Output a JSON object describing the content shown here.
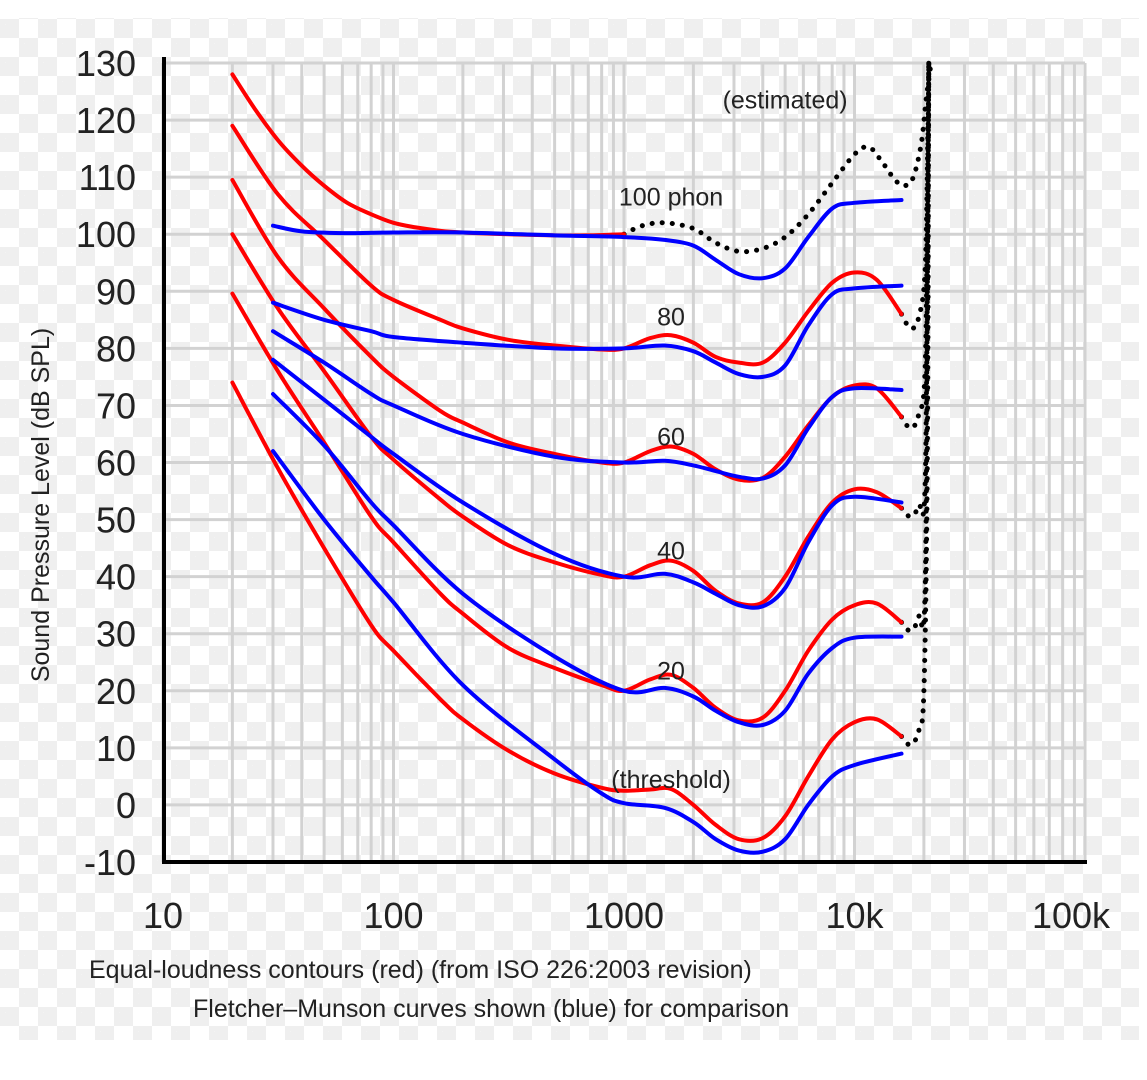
{
  "chart_data": {
    "type": "line",
    "title": "",
    "xlabel": "",
    "ylabel": "Sound Pressure Level (dB SPL)",
    "xscale": "log",
    "xlim": [
      10,
      100000
    ],
    "ylim": [
      -10,
      130
    ],
    "grid": true,
    "x_tick_labels": [
      {
        "value": 10,
        "label": "10"
      },
      {
        "value": 100,
        "label": "100"
      },
      {
        "value": 1000,
        "label": "1000"
      },
      {
        "value": 10000,
        "label": "10k"
      },
      {
        "value": 100000,
        "label": "100k"
      }
    ],
    "y_ticks": [
      130,
      120,
      110,
      100,
      90,
      80,
      70,
      60,
      50,
      40,
      30,
      20,
      10,
      0,
      -10
    ],
    "captions": [
      "Equal-loudness contours (red) (from ISO 226:2003 revision)",
      "Fletcher–Munson curves shown (blue) for comparison"
    ],
    "annotations": [
      {
        "text": "(estimated)",
        "x": 5000,
        "y": 122
      },
      {
        "text": "100 phon",
        "x": 1600,
        "y": 105
      },
      {
        "text": "80",
        "x": 1600,
        "y": 84
      },
      {
        "text": "60",
        "x": 1600,
        "y": 63
      },
      {
        "text": "40",
        "x": 1600,
        "y": 43
      },
      {
        "text": "20",
        "x": 1600,
        "y": 22
      },
      {
        "text": "(threshold)",
        "x": 1600,
        "y": 3
      }
    ],
    "colors": {
      "iso": "#ff0000",
      "fletcher_munson": "#0000ff",
      "estimated": "#000000",
      "grid": "#d2d2d2",
      "axis": "#000000"
    },
    "series": [
      {
        "name": "ISO 226:2003 100 phon",
        "group": "iso",
        "style": "solid",
        "x": [
          20,
          25,
          31.5,
          40,
          50,
          63,
          80,
          100,
          125,
          160,
          200,
          315,
          500,
          700,
          1000
        ],
        "y": [
          128,
          122,
          116.5,
          112,
          108.5,
          105.5,
          103.5,
          102,
          101.2,
          100.6,
          100.3,
          100,
          99.8,
          99.8,
          100
        ]
      },
      {
        "name": "ISO 226:2003 80 phon",
        "group": "iso",
        "style": "solid",
        "x": [
          20,
          31.5,
          50,
          80,
          100,
          160,
          200,
          315,
          500,
          800,
          1000,
          1300,
          1600,
          2000,
          2500,
          3150,
          4000,
          5000,
          6300,
          8000,
          10000,
          12500,
          16000
        ],
        "y": [
          119,
          107,
          99,
          91,
          88.5,
          85,
          83.5,
          81.5,
          80.5,
          79.8,
          80,
          81.8,
          82.3,
          81,
          78.5,
          77.5,
          77.5,
          81,
          86.5,
          91.5,
          93.3,
          92,
          86
        ]
      },
      {
        "name": "ISO 226:2003 60 phon",
        "group": "iso",
        "style": "solid",
        "x": [
          20,
          31.5,
          50,
          80,
          100,
          160,
          200,
          315,
          500,
          800,
          1000,
          1300,
          1600,
          2000,
          2500,
          3150,
          4000,
          5000,
          6300,
          8000,
          10000,
          12500,
          16000
        ],
        "y": [
          109.5,
          96,
          87,
          78.5,
          75,
          69,
          67,
          63.5,
          61.5,
          60,
          60,
          62,
          62.8,
          61.5,
          58.8,
          57,
          57.3,
          61,
          66.5,
          71.5,
          73.5,
          73,
          68
        ]
      },
      {
        "name": "ISO 226:2003 40 phon",
        "group": "iso",
        "style": "solid",
        "x": [
          20,
          31.5,
          50,
          80,
          100,
          160,
          200,
          315,
          500,
          800,
          1000,
          1300,
          1600,
          2000,
          2500,
          3150,
          4000,
          5000,
          6300,
          8000,
          10000,
          12500,
          16000
        ],
        "y": [
          100,
          87,
          76,
          64.5,
          60.5,
          53.5,
          50.5,
          45.5,
          42.5,
          40.3,
          40,
          42,
          42.8,
          41,
          37.5,
          35.3,
          35.5,
          40,
          47,
          53,
          55.3,
          54.8,
          52
        ]
      },
      {
        "name": "ISO 226:2003 20 phon",
        "group": "iso",
        "style": "solid",
        "x": [
          20,
          31.5,
          50,
          80,
          100,
          160,
          200,
          315,
          500,
          800,
          1000,
          1300,
          1600,
          2000,
          2500,
          3150,
          4000,
          5000,
          6300,
          8000,
          10000,
          12500,
          16000
        ],
        "y": [
          89.6,
          76,
          63.5,
          50.5,
          46,
          37,
          33.5,
          27.5,
          24,
          21,
          20,
          22,
          22.8,
          20.5,
          17,
          14.8,
          15.3,
          20,
          27,
          32.5,
          35,
          35.3,
          32
        ]
      },
      {
        "name": "ISO 226:2003 threshold",
        "group": "iso",
        "style": "solid",
        "x": [
          20,
          31.5,
          50,
          80,
          100,
          160,
          200,
          315,
          500,
          800,
          1000,
          1300,
          1600,
          2000,
          2500,
          3150,
          4000,
          5000,
          6300,
          8000,
          10000,
          12500,
          16000
        ],
        "y": [
          74,
          59,
          45,
          31.5,
          27,
          18.5,
          15,
          9.5,
          5.5,
          3,
          2.5,
          2.7,
          2.8,
          0,
          -3.5,
          -6,
          -5.8,
          -2,
          5,
          11.5,
          14.5,
          15,
          12
        ]
      },
      {
        "name": "Fletcher-Munson 100",
        "group": "fletcher_munson",
        "style": "solid",
        "x": [
          30,
          40,
          60,
          100,
          200,
          500,
          1000,
          1500,
          2000,
          2500,
          3150,
          4000,
          5000,
          6300,
          8000,
          10000,
          16000
        ],
        "y": [
          101.5,
          100.5,
          100.2,
          100.3,
          100.3,
          99.8,
          99.5,
          99,
          98,
          95.5,
          93,
          92.3,
          94,
          99.5,
          104.5,
          105.5,
          106
        ]
      },
      {
        "name": "Fletcher-Munson 80",
        "group": "fletcher_munson",
        "style": "solid",
        "x": [
          30,
          50,
          80,
          100,
          200,
          500,
          1000,
          1500,
          2000,
          2500,
          3150,
          4000,
          5000,
          6300,
          8000,
          10000,
          16000
        ],
        "y": [
          88,
          85,
          83,
          82,
          81,
          80,
          80,
          80.5,
          79.5,
          77.5,
          75.5,
          75,
          77,
          84,
          89.5,
          90.5,
          91
        ]
      },
      {
        "name": "Fletcher-Munson 60",
        "group": "fletcher_munson",
        "style": "solid",
        "x": [
          30,
          50,
          80,
          100,
          200,
          500,
          1000,
          1500,
          2000,
          2500,
          3150,
          4000,
          5000,
          6300,
          8000,
          10000,
          16000
        ],
        "y": [
          83,
          77.5,
          72,
          70,
          65,
          61,
          60,
          60.3,
          59.5,
          58.5,
          57.5,
          57.2,
          59.5,
          66,
          71.5,
          73,
          72.7
        ]
      },
      {
        "name": "Fletcher-Munson 40",
        "group": "fletcher_munson",
        "style": "solid",
        "x": [
          30,
          50,
          80,
          100,
          200,
          500,
          1000,
          1500,
          2000,
          2500,
          3150,
          4000,
          5000,
          6300,
          8000,
          10000,
          16000
        ],
        "y": [
          78,
          71,
          64.5,
          61.5,
          53,
          44,
          40,
          40.5,
          39,
          37,
          35,
          34.8,
          38,
          46,
          52.5,
          54,
          53
        ]
      },
      {
        "name": "Fletcher-Munson 20",
        "group": "fletcher_munson",
        "style": "solid",
        "x": [
          30,
          50,
          80,
          100,
          200,
          500,
          1000,
          1500,
          2000,
          2500,
          3150,
          4000,
          5000,
          6300,
          8000,
          10000,
          16000
        ],
        "y": [
          72,
          63,
          53,
          49,
          37,
          26,
          20,
          20.5,
          19,
          16.5,
          14.5,
          14,
          16.5,
          23,
          27.5,
          29.3,
          29.5
        ]
      },
      {
        "name": "Fletcher-Munson threshold",
        "group": "fletcher_munson",
        "style": "solid",
        "x": [
          30,
          50,
          80,
          100,
          200,
          500,
          800,
          1000,
          1500,
          2000,
          2500,
          3150,
          4000,
          5000,
          6300,
          8000,
          10000,
          16000
        ],
        "y": [
          62,
          50,
          40,
          35.5,
          21,
          8,
          2,
          0.3,
          -0.5,
          -3,
          -6,
          -8,
          -8.2,
          -6,
          0,
          5,
          7,
          9
        ]
      },
      {
        "name": "Estimated 100 phon",
        "group": "estimated",
        "style": "dotted",
        "x": [
          1000,
          1200,
          1500,
          2000,
          2500,
          3150,
          4000,
          5000,
          6300,
          8000,
          10000,
          11500,
          13000,
          15000,
          16500,
          18000,
          19500,
          20500,
          21500
        ],
        "y": [
          100,
          101.5,
          102,
          101,
          98.5,
          97,
          97.5,
          99.5,
          103.5,
          109,
          114,
          115.3,
          113,
          109.5,
          108.5,
          110,
          116,
          124,
          130
        ]
      },
      {
        "name": "Estimated 80 phon",
        "group": "estimated",
        "style": "dotted",
        "x": [
          16000,
          17500,
          19000,
          20300,
          21000
        ],
        "y": [
          86,
          83.5,
          85.5,
          95,
          130
        ]
      },
      {
        "name": "Estimated 60 phon",
        "group": "estimated",
        "style": "dotted",
        "x": [
          16000,
          17500,
          19000,
          20300,
          21000
        ],
        "y": [
          68,
          66,
          68.5,
          78,
          130
        ]
      },
      {
        "name": "Estimated 40 phon",
        "group": "estimated",
        "style": "dotted",
        "x": [
          16000,
          17500,
          19000,
          20300,
          21000
        ],
        "y": [
          52,
          50.5,
          52.5,
          58,
          130
        ]
      },
      {
        "name": "Estimated 20 phon",
        "group": "estimated",
        "style": "dotted",
        "x": [
          16000,
          17500,
          19000,
          20300,
          21000
        ],
        "y": [
          32,
          30.5,
          33,
          40,
          130
        ]
      },
      {
        "name": "Estimated threshold",
        "group": "estimated",
        "style": "dotted",
        "x": [
          16000,
          17500,
          19000,
          20000,
          20700,
          21000
        ],
        "y": [
          12,
          10.5,
          13,
          20,
          60,
          130
        ]
      }
    ]
  }
}
